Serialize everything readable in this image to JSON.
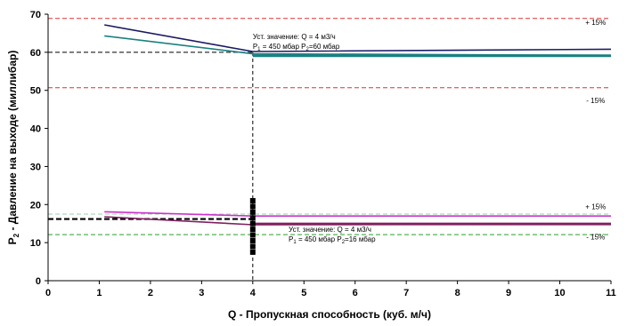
{
  "chart_data": {
    "type": "line",
    "title": "",
    "xlabel": "Q - Пропускная способность (куб. м/ч)",
    "ylabel_prefix": "P",
    "ylabel_sub": "2",
    "ylabel_rest": " - Давление на выходе (миллибар)",
    "xlim": [
      0,
      11
    ],
    "ylim": [
      0,
      70
    ],
    "xticks": [
      0,
      1,
      2,
      3,
      4,
      5,
      6,
      7,
      8,
      9,
      10,
      11
    ],
    "yticks": [
      0,
      10,
      20,
      30,
      40,
      50,
      60,
      70
    ],
    "grid": false,
    "legend": "none",
    "series": [
      {
        "color": "#1a1a66",
        "width": 1.6,
        "x": [
          1.1,
          4.0,
          11.0
        ],
        "y": [
          67.2,
          60.2,
          60.8
        ]
      },
      {
        "color": "#1a8080",
        "width": 1.6,
        "x": [
          1.1,
          4.0,
          11.0
        ],
        "y": [
          64.3,
          59.6,
          59.2
        ]
      },
      {
        "color": "#cc33cc",
        "width": 1.6,
        "x": [
          1.1,
          4.0,
          11.0
        ],
        "y": [
          18.1,
          17.0,
          17.0
        ]
      },
      {
        "color": "#802060",
        "width": 1.6,
        "x": [
          1.1,
          4.0,
          11.0
        ],
        "y": [
          16.8,
          14.7,
          14.9
        ]
      }
    ],
    "thick_lines": [
      {
        "color": "#1a8080",
        "width": 3,
        "x": [
          4.0,
          11.0
        ],
        "y": [
          59.1,
          59.1
        ]
      },
      {
        "color": "#802060",
        "width": 3,
        "x": [
          4.0,
          11.0
        ],
        "y": [
          14.9,
          14.9
        ]
      }
    ],
    "reference_lines": [
      {
        "y": 68.9,
        "color": "#e03030"
      },
      {
        "y": 50.7,
        "color": "#e03030"
      },
      {
        "y": 17.5,
        "color": "#9ad0a8"
      },
      {
        "y": 12.1,
        "color": "#2aa02a"
      }
    ],
    "setpoints": [
      {
        "y": 60,
        "color": "#000000",
        "dash": "5,3",
        "width": 1
      },
      {
        "y": 16.2,
        "color": "#000000",
        "dash": "6,3",
        "width": 2.2
      }
    ],
    "vertical_line": {
      "x": 4.0,
      "color": "#000000"
    },
    "scatter_marks": {
      "x": 4.0,
      "y": [
        7.5,
        9.0,
        10.5,
        12.0,
        13.5,
        15.0,
        16.5,
        18.0,
        19.5,
        21.0
      ],
      "color": "#000000"
    },
    "band_labels": [
      {
        "text": "+ 15%",
        "x": 10.7,
        "y": 67.2
      },
      {
        "text": "- 15%",
        "x": 10.7,
        "y": 46.7
      },
      {
        "text": "+ 15%",
        "x": 10.7,
        "y": 18.8
      },
      {
        "text": "- 15%",
        "x": 10.7,
        "y": 10.9
      }
    ],
    "annotations": [
      {
        "line1": "Уст. значение: Q = 4 м3/ч",
        "line2_p1": "P",
        "line2_p1_sub": "1",
        "line2_p1_val": " = 450 мбар",
        "line2_p2": "P",
        "line2_p2_sub": "2",
        "line2_p2_val": "=60 мбар",
        "x": 4.0,
        "y": 63.5
      },
      {
        "line1": "Уст. значение: Q = 4 м3/ч",
        "line2_p1": "P",
        "line2_p1_sub": "1",
        "line2_p1_val": " = 450 мбар",
        "line2_p2": "P",
        "line2_p2_sub": "2",
        "line2_p2_val": "=16 мбар",
        "x": 4.7,
        "y": 12.8
      }
    ]
  }
}
